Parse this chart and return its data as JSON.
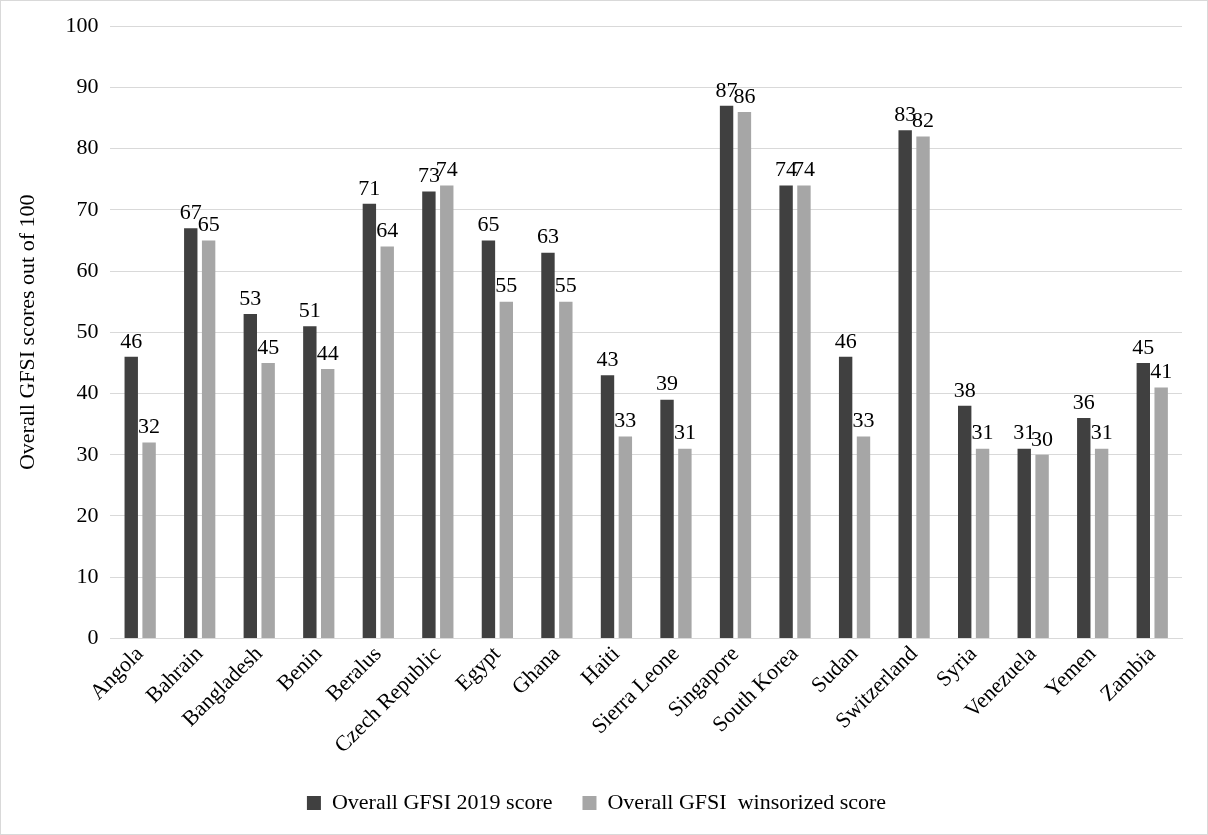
{
  "chart_data": {
    "type": "bar",
    "ylabel": "Overall GFSI scores out of 100",
    "categories": [
      "Angola",
      "Bahrain",
      "Bangladesh",
      "Benin",
      "Beralus",
      "Czech Republic",
      "Egypt",
      "Ghana",
      "Haiti",
      "Sierra Leone",
      "Singapore",
      "South Korea",
      "Sudan",
      "Switzerland",
      "Syria",
      "Venezuela",
      "Yemen",
      "Zambia"
    ],
    "series": [
      {
        "name": "Overall GFSI 2019 score",
        "color": "#404040",
        "values": [
          46,
          67,
          53,
          51,
          71,
          73,
          65,
          63,
          43,
          39,
          87,
          74,
          46,
          83,
          38,
          31,
          36,
          45
        ]
      },
      {
        "name": "Overall GFSI  winsorized score",
        "color": "#a6a6a6",
        "values": [
          32,
          65,
          45,
          44,
          64,
          74,
          55,
          55,
          33,
          31,
          86,
          74,
          33,
          82,
          31,
          30,
          31,
          41
        ]
      }
    ],
    "ylim": [
      0,
      100
    ],
    "yticks": [
      0,
      10,
      20,
      30,
      40,
      50,
      60,
      70,
      80,
      90,
      100
    ],
    "grid": "y",
    "legend": "bottom",
    "data_labels": true
  }
}
